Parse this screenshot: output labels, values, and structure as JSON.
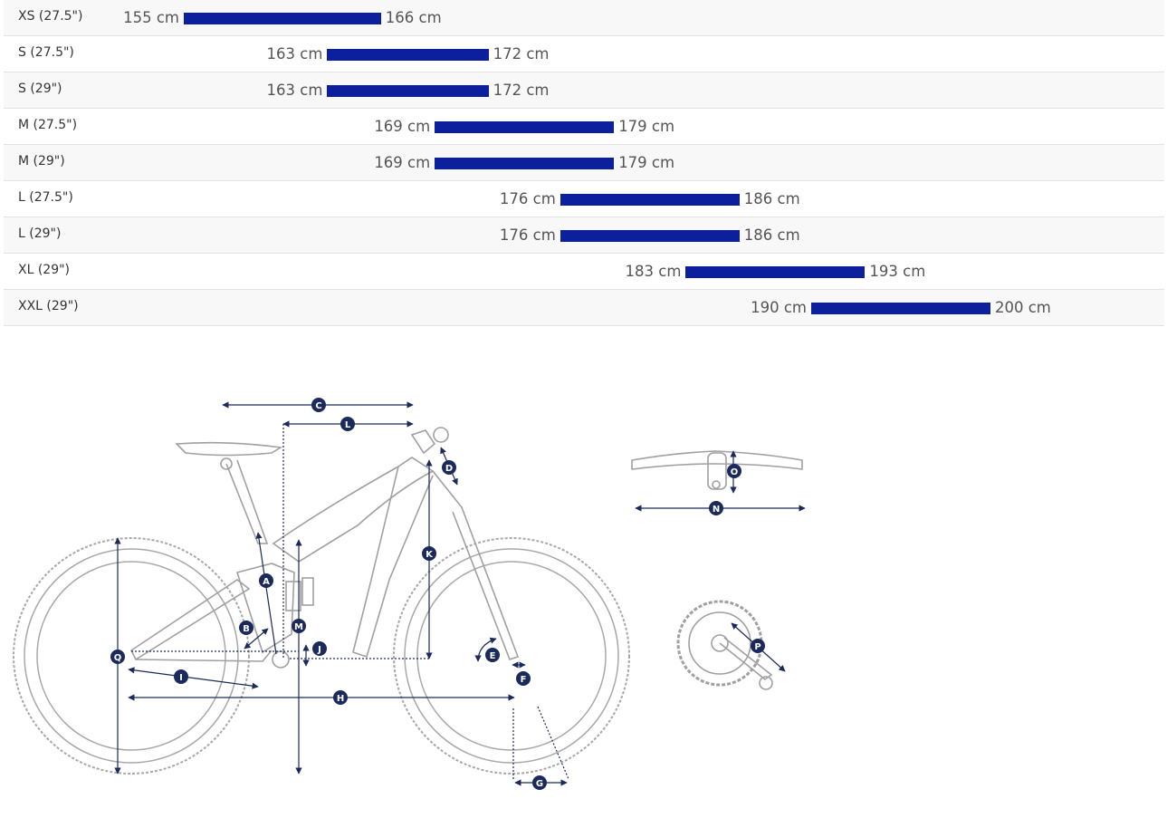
{
  "size_chart": {
    "rows": [
      {
        "size": "XS (27.5\")",
        "min_cm": 155,
        "max_cm": 166,
        "min_label": "155 cm",
        "max_label": "166 cm"
      },
      {
        "size": "S (27.5\")",
        "min_cm": 163,
        "max_cm": 172,
        "min_label": "163 cm",
        "max_label": "172 cm"
      },
      {
        "size": "S (29\")",
        "min_cm": 163,
        "max_cm": 172,
        "min_label": "163 cm",
        "max_label": "172 cm"
      },
      {
        "size": "M (27.5\")",
        "min_cm": 169,
        "max_cm": 179,
        "min_label": "169 cm",
        "max_label": "179 cm"
      },
      {
        "size": "M (29\")",
        "min_cm": 169,
        "max_cm": 179,
        "min_label": "169 cm",
        "max_label": "179 cm"
      },
      {
        "size": "L (27.5\")",
        "min_cm": 176,
        "max_cm": 186,
        "min_label": "176 cm",
        "max_label": "186 cm"
      },
      {
        "size": "L (29\")",
        "min_cm": 176,
        "max_cm": 186,
        "min_label": "176 cm",
        "max_label": "186 cm"
      },
      {
        "size": "XL (29\")",
        "min_cm": 183,
        "max_cm": 193,
        "min_label": "183 cm",
        "max_label": "193 cm"
      },
      {
        "size": "XXL (29\")",
        "min_cm": 190,
        "max_cm": 200,
        "min_label": "190 cm",
        "max_label": "200 cm"
      }
    ],
    "bar_color": "#0c1f9c"
  },
  "geometry_labels": {
    "A": "A",
    "B": "B",
    "C": "C",
    "D": "D",
    "E": "E",
    "F": "F",
    "G": "G",
    "H": "H",
    "I": "I",
    "J": "J",
    "K": "K",
    "L": "L",
    "M": "M",
    "N": "N",
    "O": "O",
    "P": "P",
    "Q": "Q"
  },
  "colors": {
    "marker": "#1b2a5c",
    "outline": "#9a9a9a",
    "dim_line": "#1b2a5c"
  }
}
